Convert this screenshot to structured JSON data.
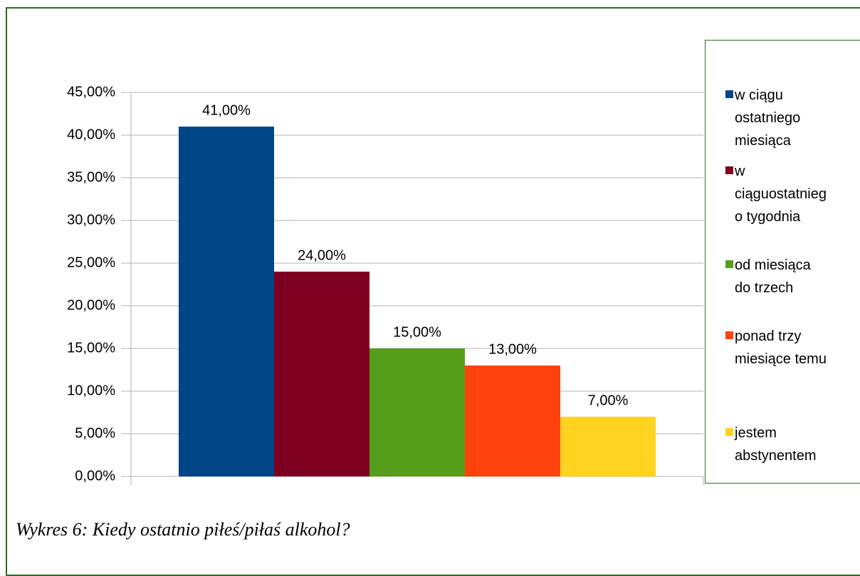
{
  "chart_data": {
    "type": "bar",
    "caption": "Wykres 6: Kiedy ostatnio piłeś/piłaś alkohol?",
    "series": [
      {
        "name": "w ciągu ostatniego miesiąca",
        "color": "#004586",
        "values": [
          41
        ],
        "value_labels": [
          "41,00%"
        ]
      },
      {
        "name": "w ciąguostatniego tygodnia",
        "color": "#7e0021",
        "values": [
          24
        ],
        "value_labels": [
          "24,00%"
        ]
      },
      {
        "name": "od miesiąca do trzech",
        "color": "#579d1c",
        "values": [
          15
        ],
        "value_labels": [
          "15,00%"
        ]
      },
      {
        "name": "ponad trzy miesiące temu",
        "color": "#ff420e",
        "values": [
          13
        ],
        "value_labels": [
          "13,00%"
        ]
      },
      {
        "name": "jestem abstynentem",
        "color": "#ffd320",
        "values": [
          7
        ],
        "value_labels": [
          "7,00%"
        ]
      }
    ],
    "ylim": [
      0,
      45
    ],
    "yticks": [
      {
        "value": 0,
        "label": "0,00%"
      },
      {
        "value": 5,
        "label": "5,00%"
      },
      {
        "value": 10,
        "label": "10,00%"
      },
      {
        "value": 15,
        "label": "15,00%"
      },
      {
        "value": 20,
        "label": "20,00%"
      },
      {
        "value": 25,
        "label": "25,00%"
      },
      {
        "value": 30,
        "label": "30,00%"
      },
      {
        "value": 35,
        "label": "35,00%"
      },
      {
        "value": 40,
        "label": "40,00%"
      },
      {
        "value": 45,
        "label": "45,00%"
      }
    ],
    "grid": true,
    "legend": "right"
  }
}
